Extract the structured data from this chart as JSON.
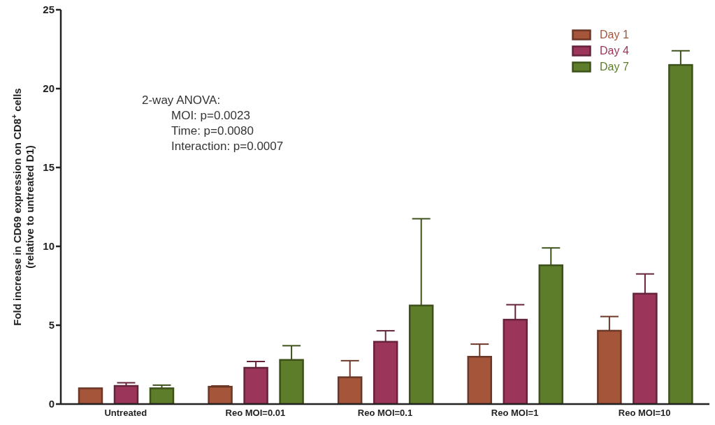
{
  "chart_data": {
    "type": "bar",
    "ylabel": "Fold increase in CD69 expression on CD8$^{+}$ cells\n(relative to untreated D1)",
    "categories": [
      "Untreated",
      "Reo MOI=0.01",
      "Reo MOI=0.1",
      "Reo MOI=1",
      "Reo MOI=10"
    ],
    "series": [
      {
        "name": "Day 1",
        "color": "#a5553a",
        "values": [
          1.0,
          1.1,
          1.7,
          3.0,
          4.65
        ],
        "errors": [
          null,
          0.05,
          1.05,
          0.8,
          0.9
        ]
      },
      {
        "name": "Day 4",
        "color": "#9b365a",
        "values": [
          1.15,
          2.3,
          3.95,
          5.35,
          7.0
        ],
        "errors": [
          0.2,
          0.4,
          0.7,
          0.95,
          1.25
        ]
      },
      {
        "name": "Day 7",
        "color": "#5e7d2a",
        "values": [
          1.0,
          2.8,
          6.25,
          8.8,
          21.5
        ],
        "errors": [
          0.2,
          0.9,
          5.5,
          1.1,
          0.9
        ]
      }
    ],
    "annotations": [
      "2-way ANOVA:",
      "MOI: p=0.0023",
      "Time: p=0.0080",
      "Interaction: p=0.0007"
    ],
    "ylim": [
      0,
      25
    ],
    "yticks": [
      0,
      5,
      10,
      15,
      20,
      25
    ],
    "legend": "top right"
  }
}
